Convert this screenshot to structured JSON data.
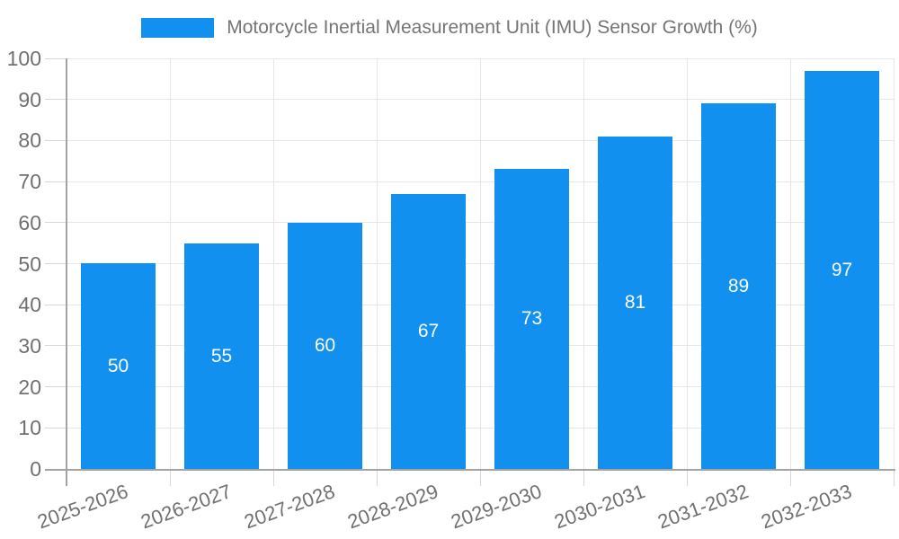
{
  "chart_data": {
    "type": "bar",
    "title": "Motorcycle Inertial Measurement Unit (IMU) Sensor Growth (%)",
    "legend": "Motorcycle Inertial Measurement Unit (IMU) Sensor Growth (%)",
    "legend_position": "top-center",
    "categories": [
      "2025-2026",
      "2026-2027",
      "2027-2028",
      "2028-2029",
      "2029-2030",
      "2030-2031",
      "2031-2032",
      "2032-2033"
    ],
    "values": [
      50,
      55,
      60,
      67,
      73,
      81,
      89,
      97
    ],
    "y_ticks": [
      0,
      10,
      20,
      30,
      40,
      50,
      60,
      70,
      80,
      90,
      100
    ],
    "xlabel": "",
    "ylabel": "",
    "ylim": [
      0,
      100
    ],
    "grid": true,
    "x_label_rotation_deg": -20
  },
  "colors": {
    "bar": "#1190f0",
    "value_label": "#ffffff",
    "axis_label": "#707070",
    "legend_text": "#757575",
    "gridline": "#e6e6e6",
    "tick": "#d6d6d6",
    "axis_line": "#a3a3a3",
    "background": "#ffffff"
  }
}
